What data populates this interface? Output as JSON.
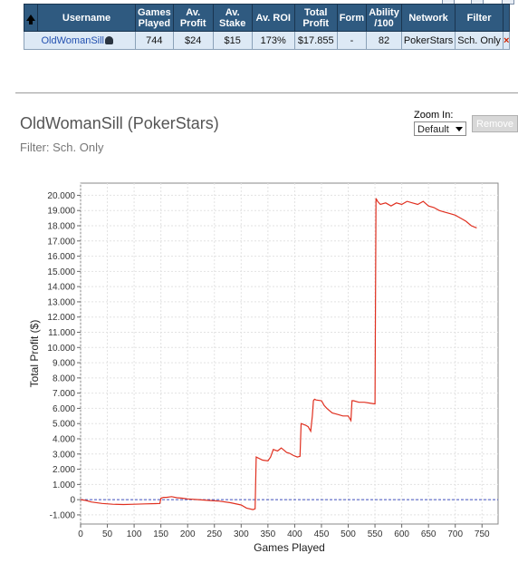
{
  "table": {
    "headers": [
      {
        "key": "username",
        "label": "Username"
      },
      {
        "key": "games",
        "label": "Games Played"
      },
      {
        "key": "avprofit",
        "label": "Av. Profit"
      },
      {
        "key": "avstake",
        "label": "Av. Stake"
      },
      {
        "key": "avroi",
        "label": "Av. ROI"
      },
      {
        "key": "totalprofit",
        "label": "Total Profit"
      },
      {
        "key": "form",
        "label": "Form"
      },
      {
        "key": "ability",
        "label": "Ability /100"
      },
      {
        "key": "network",
        "label": "Network"
      },
      {
        "key": "filter",
        "label": "Filter"
      }
    ],
    "row": {
      "username": "OldWomanSill",
      "games": "744",
      "avprofit": "$24",
      "avstake": "$15",
      "avroi": "173%",
      "totalprofit": "$17.855",
      "form": "-",
      "ability": "82",
      "network": "PokerStars",
      "filter": "Sch. Only",
      "remove_mark": "×"
    }
  },
  "chart_header": {
    "title": "OldWomanSill (PokerStars)",
    "filter": "Filter: Sch. Only",
    "zoom_label": "Zoom In:",
    "zoom_value": "Default",
    "remove_label": "Remove"
  },
  "chart_data": {
    "type": "line",
    "xlabel": "Games Played",
    "ylabel": "Total Profit ($)",
    "xlim": [
      0,
      780
    ],
    "ylim": [
      -1600,
      20800
    ],
    "x_ticks": [
      0,
      50,
      100,
      150,
      200,
      250,
      300,
      350,
      400,
      450,
      500,
      550,
      600,
      650,
      700,
      750
    ],
    "y_ticks": [
      -1000,
      0,
      1000,
      2000,
      3000,
      4000,
      5000,
      6000,
      7000,
      8000,
      9000,
      10000,
      11000,
      12000,
      13000,
      14000,
      15000,
      16000,
      17000,
      18000,
      19000,
      20000
    ],
    "y_tick_labels": [
      "-1.000",
      "0",
      "1.000",
      "2.000",
      "3.000",
      "4.000",
      "5.000",
      "6.000",
      "7.000",
      "8.000",
      "9.000",
      "10.000",
      "11.000",
      "12.000",
      "13.000",
      "14.000",
      "15.000",
      "16.000",
      "17.000",
      "18.000",
      "19.000",
      "20.000"
    ],
    "grid": true,
    "line_color": "#e03020",
    "zero_line_color": "#4050c0",
    "series": [
      {
        "x": [
          0,
          10,
          20,
          40,
          60,
          80,
          100,
          120,
          140,
          148,
          150,
          155,
          160,
          170,
          180,
          190,
          200,
          220,
          240,
          260,
          280,
          300,
          310,
          322,
          326,
          328,
          340,
          350,
          355,
          360,
          368,
          375,
          380,
          385,
          390,
          398,
          405,
          410,
          412,
          420,
          425,
          430,
          433,
          435,
          437,
          440,
          450,
          455,
          460,
          470,
          480,
          490,
          500,
          505,
          507,
          510,
          520,
          530,
          540,
          548,
          550,
          552,
          555,
          560,
          570,
          580,
          590,
          600,
          610,
          620,
          630,
          640,
          650,
          660,
          670,
          680,
          690,
          700,
          710,
          720,
          730,
          740
        ],
        "y": [
          0,
          -50,
          -150,
          -250,
          -300,
          -320,
          -300,
          -280,
          -260,
          -250,
          100,
          150,
          150,
          200,
          130,
          100,
          50,
          0,
          -50,
          -100,
          -200,
          -350,
          -550,
          -650,
          -600,
          2800,
          2600,
          2550,
          2800,
          3300,
          3200,
          3400,
          3250,
          3100,
          3050,
          2900,
          2800,
          2850,
          5000,
          4900,
          4800,
          4500,
          5500,
          6500,
          6600,
          6550,
          6500,
          6200,
          6000,
          5700,
          5600,
          5500,
          5500,
          5200,
          6500,
          6500,
          6400,
          6400,
          6350,
          6300,
          6300,
          19800,
          19600,
          19400,
          19500,
          19300,
          19500,
          19400,
          19600,
          19500,
          19400,
          19600,
          19300,
          19200,
          19000,
          18900,
          18800,
          18700,
          18500,
          18300,
          18000,
          17855
        ]
      }
    ]
  }
}
